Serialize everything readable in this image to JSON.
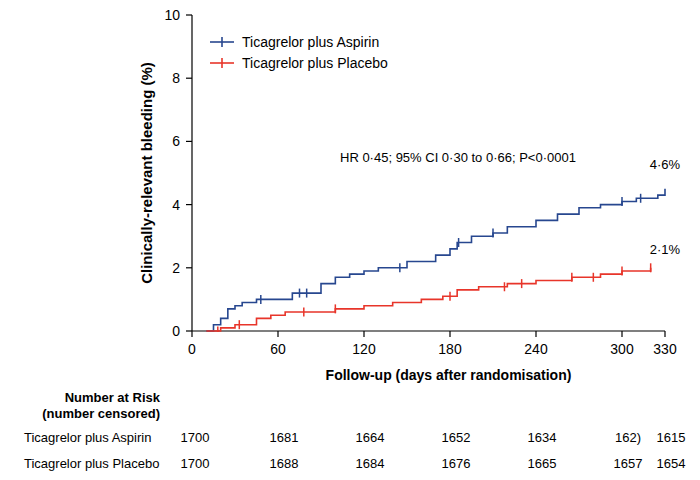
{
  "chart_data": {
    "type": "line",
    "line_style": "step",
    "x_label": "Follow-up (days after randomisation)",
    "y_label": "Clinically-relevant bleeding (%)",
    "xlim": [
      0,
      330
    ],
    "ylim": [
      0,
      10
    ],
    "xticks": [
      0,
      60,
      120,
      180,
      240,
      300,
      330
    ],
    "yticks": [
      0,
      2,
      4,
      6,
      8,
      10
    ],
    "legend": "upper left",
    "annotations": [
      "HR 0·45; 95% CI 0·30 to 0·66; P<0·0001",
      "4·6%",
      "2·1%"
    ],
    "series": [
      {
        "name": "Ticagrelor plus Aspirin",
        "color": "#27478f",
        "marker": "plus",
        "x": [
          10,
          15,
          20,
          25,
          30,
          35,
          45,
          70,
          90,
          100,
          110,
          120,
          130,
          150,
          170,
          180,
          185,
          195,
          210,
          220,
          240,
          255,
          270,
          285,
          300,
          310,
          325,
          330
        ],
        "values": [
          0,
          0.2,
          0.4,
          0.7,
          0.8,
          0.9,
          1.0,
          1.2,
          1.5,
          1.7,
          1.8,
          1.9,
          2.0,
          2.2,
          2.4,
          2.6,
          2.8,
          3.0,
          3.1,
          3.3,
          3.5,
          3.7,
          3.9,
          4.0,
          4.1,
          4.2,
          4.3,
          4.5
        ],
        "censored": [
          48,
          75,
          80,
          145,
          186,
          210,
          300,
          313
        ]
      },
      {
        "name": "Ticagrelor plus Placebo",
        "color": "#e8352a",
        "marker": "plus",
        "x": [
          10,
          20,
          30,
          45,
          55,
          65,
          100,
          120,
          140,
          160,
          175,
          185,
          200,
          220,
          240,
          265,
          285,
          300,
          320
        ],
        "values": [
          0,
          0.1,
          0.2,
          0.4,
          0.5,
          0.6,
          0.7,
          0.8,
          0.9,
          1.0,
          1.1,
          1.3,
          1.4,
          1.5,
          1.6,
          1.7,
          1.8,
          1.9,
          2.0
        ],
        "censored": [
          18,
          33,
          78,
          100,
          180,
          218,
          230,
          265,
          280,
          300,
          320
        ]
      }
    ],
    "risk_table": {
      "title": "Number at Risk",
      "subtitle": "(number censored)",
      "values": [
        [
          "1700",
          "1681",
          "1664",
          "1652",
          "1634",
          "162)",
          "1615"
        ],
        [
          "1700",
          "1688",
          "1684",
          "1676",
          "1665",
          "1657",
          "1654"
        ]
      ]
    }
  }
}
